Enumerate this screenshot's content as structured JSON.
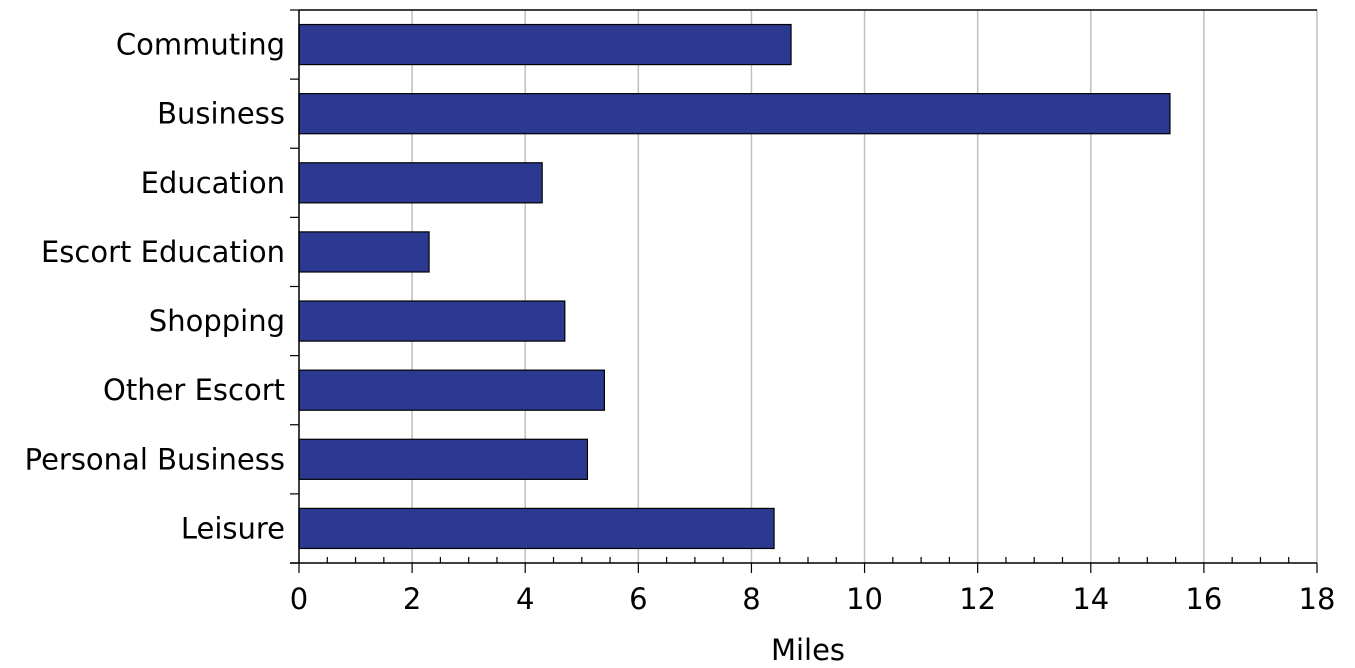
{
  "chart_data": {
    "type": "bar",
    "orientation": "horizontal",
    "categories": [
      "Commuting",
      "Business",
      "Education",
      "Escort Education",
      "Shopping",
      "Other Escort",
      "Personal Business",
      "Leisure"
    ],
    "values": [
      8.7,
      15.4,
      4.3,
      2.3,
      4.7,
      5.4,
      5.1,
      8.4
    ],
    "xlabel": "Miles",
    "ylabel": "",
    "title": "",
    "xlim": [
      0,
      18
    ],
    "xticks": [
      0,
      2,
      4,
      6,
      8,
      10,
      12,
      14,
      16,
      18
    ],
    "grid": true,
    "bar_color": "#2b3990"
  }
}
